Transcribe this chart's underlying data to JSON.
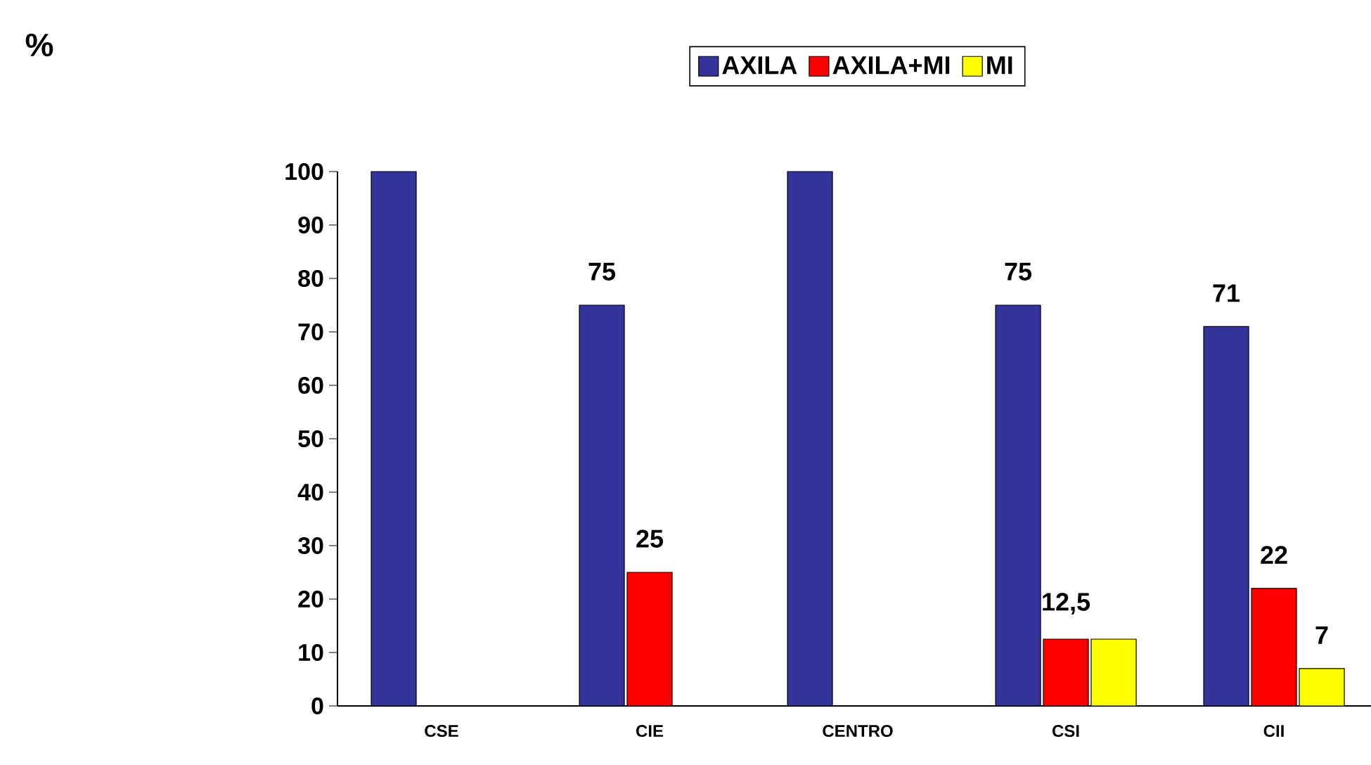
{
  "chart_data": {
    "type": "bar",
    "annotations": [
      "%"
    ],
    "categories": [
      "CSE",
      "CIE",
      "CENTRO",
      "CSI",
      "CII"
    ],
    "series": [
      {
        "name": "AXILA",
        "color": "#333399",
        "values": [
          100,
          75,
          100,
          75,
          71
        ],
        "value_labels": [
          null,
          "75",
          null,
          "75",
          "71"
        ]
      },
      {
        "name": "AXILA+MI",
        "color": "#ff0000",
        "values": [
          null,
          25,
          null,
          12.5,
          22
        ],
        "value_labels": [
          null,
          "25",
          null,
          "12,5",
          "22"
        ]
      },
      {
        "name": "MI",
        "color": "#ffff00",
        "values": [
          null,
          null,
          null,
          12.5,
          7
        ],
        "value_labels": [
          null,
          null,
          null,
          null,
          "7"
        ]
      }
    ],
    "ylim": [
      0,
      100
    ],
    "yticks": [
      0,
      10,
      20,
      30,
      40,
      50,
      60,
      70,
      80,
      90,
      100
    ],
    "legend": "top",
    "grid": false
  }
}
